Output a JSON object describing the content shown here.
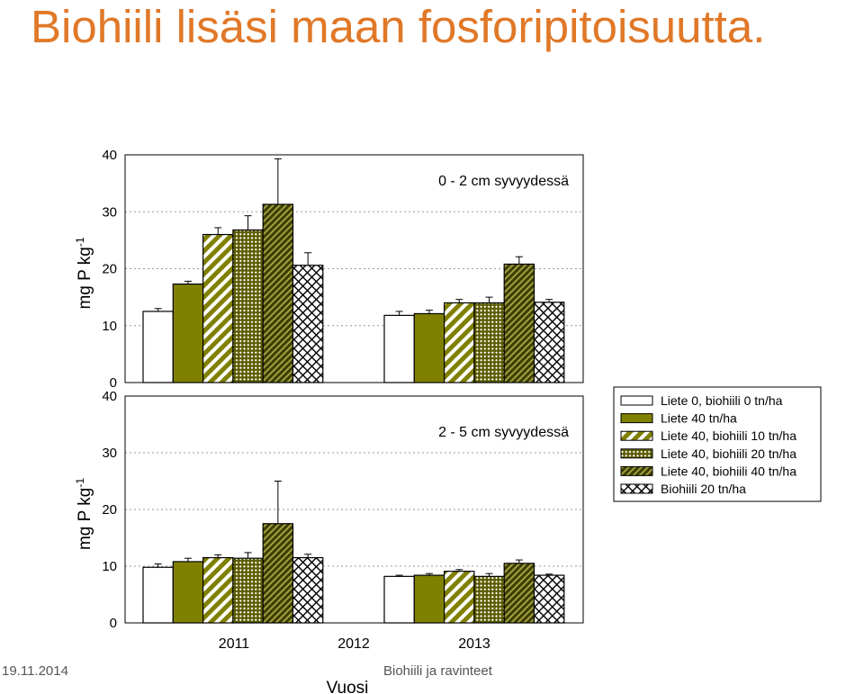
{
  "slide": {
    "title": "Biohiili lisäsi maan fosforipitoisuutta.",
    "footer_date": "19.11.2014",
    "footer_center": "Biohiili ja ravinteet"
  },
  "chart_data": {
    "type": "bar",
    "xlabel": "Vuosi",
    "ylabel_main": "mg P kg",
    "ylabel_sup": "-1",
    "categories": [
      "2011",
      "2012",
      "2013"
    ],
    "ylim": [
      0,
      40
    ],
    "yticks": [
      "0",
      "10",
      "20",
      "30",
      "40"
    ],
    "panels": [
      {
        "label": "0 - 2 cm syvyydessä",
        "series_values": [
          [
            12.5,
            11.8
          ],
          [
            17.3,
            12.1
          ],
          [
            26.0,
            14.0
          ],
          [
            26.8,
            14.0
          ],
          [
            31.3,
            20.8
          ],
          [
            20.6,
            14.1
          ]
        ],
        "errors": [
          [
            0.5,
            0.7
          ],
          [
            0.5,
            0.6
          ],
          [
            1.2,
            0.6
          ],
          [
            2.5,
            1.0
          ],
          [
            8.0,
            1.3
          ],
          [
            2.2,
            0.5
          ]
        ]
      },
      {
        "label": "2 - 5 cm syvyydessä",
        "series_values": [
          [
            9.8,
            8.2
          ],
          [
            10.8,
            8.4
          ],
          [
            11.5,
            9.1
          ],
          [
            11.4,
            8.2
          ],
          [
            17.5,
            10.5
          ],
          [
            11.5,
            8.4
          ]
        ],
        "errors": [
          [
            0.6,
            0.2
          ],
          [
            0.6,
            0.3
          ],
          [
            0.5,
            0.3
          ],
          [
            1.0,
            0.5
          ],
          [
            7.5,
            0.6
          ],
          [
            0.6,
            0.2
          ]
        ]
      }
    ],
    "series": [
      {
        "name": "Liete 0, biohiili 0 tn/ha",
        "pattern": "white"
      },
      {
        "name": "Liete 40 tn/ha",
        "pattern": "solid"
      },
      {
        "name": "Liete 40, biohiili 10 tn/ha",
        "pattern": "diag-wide"
      },
      {
        "name": "Liete 40, biohiili 20 tn/ha",
        "pattern": "cross-dense"
      },
      {
        "name": "Liete 40, biohiili 40 tn/ha",
        "pattern": "diag-dense"
      },
      {
        "name": "Biohiili 20 tn/ha",
        "pattern": "cross-open"
      }
    ],
    "colors": {
      "olive": "#808000",
      "dark_olive": "#5c5c00",
      "bar_outline": "#000000"
    },
    "grid": true,
    "legend_position": "right"
  }
}
